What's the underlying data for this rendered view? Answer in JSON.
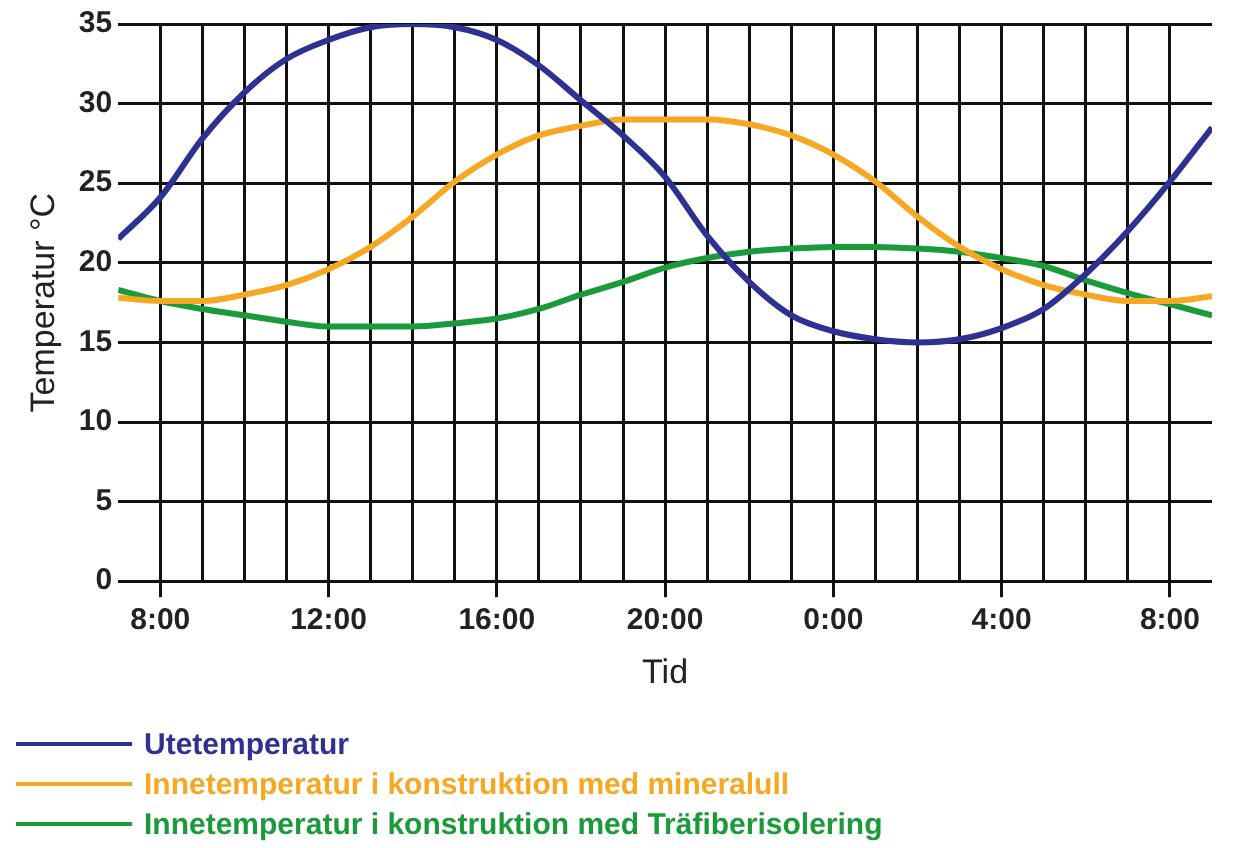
{
  "chart_data": {
    "type": "line",
    "xlabel": "Tid",
    "ylabel": "Temperatur °C",
    "x": [
      "--01-01T07:00",
      "--01-01T08:00",
      "--01-01T09:00",
      "--01-01T10:00",
      "--01-01T11:00",
      "--01-01T12:00",
      "--01-01T13:00",
      "--01-01T14:00",
      "--01-01T15:00",
      "--01-01T16:00",
      "--01-01T17:00",
      "--01-01T18:00",
      "--01-01T19:00",
      "--01-01T20:00",
      "--01-01T21:00",
      "--01-01T22:00",
      "--01-01T23:00",
      "--01-02T00:00",
      "--01-02T01:00",
      "--01-02T02:00",
      "--01-02T03:00",
      "--01-02T04:00",
      "--01-02T05:00",
      "--01-02T06:00",
      "--01-02T07:00",
      "--01-02T08:00",
      "--01-02T09:00"
    ],
    "series": [
      {
        "name": "Utetemperatur",
        "color": "#2e3192",
        "values": [
          21.5,
          24.1,
          27.8,
          30.7,
          32.8,
          34.0,
          34.8,
          35.0,
          34.8,
          34.0,
          32.4,
          30.2,
          28.0,
          25.4,
          21.7,
          18.8,
          16.7,
          15.7,
          15.2,
          15.0,
          15.2,
          15.9,
          17.1,
          19.3,
          22.0,
          25.1,
          28.5
        ]
      },
      {
        "name": "Innetemperatur i konstruktion med mineralull",
        "color": "#f7a823",
        "values": [
          17.8,
          17.6,
          17.6,
          18.0,
          18.6,
          19.6,
          21.0,
          22.9,
          25.1,
          26.8,
          28.0,
          28.6,
          29.0,
          29.0,
          29.0,
          28.7,
          28.0,
          26.8,
          25.1,
          22.9,
          21.0,
          19.6,
          18.6,
          18.0,
          17.6,
          17.6,
          17.9
        ]
      },
      {
        "name": "Innetemperatur i konstruktion med Träfiberisolering",
        "color": "#1a9a3a",
        "values": [
          18.3,
          17.6,
          17.1,
          16.7,
          16.3,
          16.0,
          16.0,
          16.0,
          16.2,
          16.5,
          17.1,
          18.0,
          18.8,
          19.7,
          20.3,
          20.7,
          20.9,
          21.0,
          21.0,
          20.9,
          20.7,
          20.3,
          19.8,
          18.9,
          18.1,
          17.4,
          16.7
        ]
      }
    ],
    "xlim": [
      "--01-01T07:00",
      "--01-02T09:00"
    ],
    "xticks": [
      {
        "value": "--01-01T08:00",
        "label": "8:00"
      },
      {
        "value": "--01-01T09:00",
        "label": null
      },
      {
        "value": "--01-01T10:00",
        "label": null
      },
      {
        "value": "--01-01T11:00",
        "label": null
      },
      {
        "value": "--01-01T12:00",
        "label": "12:00"
      },
      {
        "value": "--01-01T13:00",
        "label": null
      },
      {
        "value": "--01-01T14:00",
        "label": null
      },
      {
        "value": "--01-01T15:00",
        "label": null
      },
      {
        "value": "--01-01T16:00",
        "label": "16:00"
      },
      {
        "value": "--01-01T17:00",
        "label": null
      },
      {
        "value": "--01-01T18:00",
        "label": null
      },
      {
        "value": "--01-01T19:00",
        "label": null
      },
      {
        "value": "--01-01T20:00",
        "label": "20:00"
      },
      {
        "value": "--01-01T21:00",
        "label": null
      },
      {
        "value": "--01-01T22:00",
        "label": null
      },
      {
        "value": "--01-01T23:00",
        "label": null
      },
      {
        "value": "--01-02T00:00",
        "label": "0:00"
      },
      {
        "value": "--01-02T01:00",
        "label": null
      },
      {
        "value": "--01-02T02:00",
        "label": null
      },
      {
        "value": "--01-02T03:00",
        "label": null
      },
      {
        "value": "--01-02T04:00",
        "label": "4:00"
      },
      {
        "value": "--01-02T05:00",
        "label": null
      },
      {
        "value": "--01-02T06:00",
        "label": null
      },
      {
        "value": "--01-02T07:00",
        "label": null
      },
      {
        "value": "--01-02T08:00",
        "label": "8:00"
      }
    ],
    "ylim": [
      0,
      35
    ],
    "yticks": [
      0,
      5,
      10,
      15,
      20,
      25,
      30,
      35
    ],
    "grid": true,
    "legend": "bottom",
    "marker": "none",
    "line_style": "solid"
  }
}
